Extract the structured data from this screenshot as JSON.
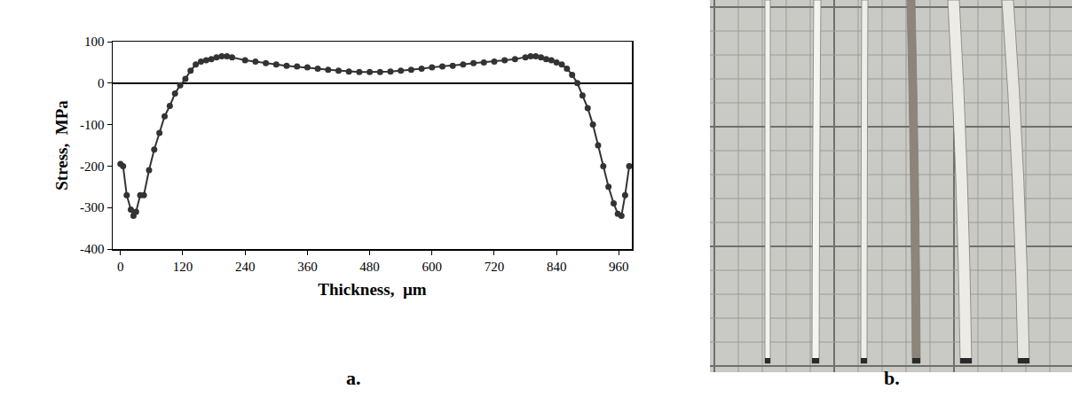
{
  "chart_data": {
    "type": "scatter",
    "x_label": "Thickness,  µm",
    "y_label": "Stress,  MPa",
    "x": [
      0,
      5,
      12,
      20,
      25,
      30,
      38,
      45,
      55,
      65,
      75,
      85,
      95,
      105,
      115,
      125,
      135,
      145,
      155,
      165,
      175,
      185,
      195,
      205,
      215,
      240,
      260,
      280,
      300,
      320,
      340,
      360,
      380,
      400,
      420,
      440,
      460,
      480,
      500,
      520,
      540,
      560,
      580,
      600,
      620,
      640,
      660,
      680,
      700,
      720,
      740,
      760,
      780,
      790,
      800,
      810,
      820,
      830,
      840,
      850,
      860,
      870,
      880,
      890,
      900,
      910,
      920,
      930,
      940,
      950,
      958,
      965,
      972,
      980
    ],
    "values": [
      -195,
      -200,
      -270,
      -305,
      -320,
      -310,
      -270,
      -270,
      -210,
      -160,
      -120,
      -80,
      -55,
      -25,
      -5,
      10,
      30,
      45,
      52,
      55,
      58,
      62,
      65,
      65,
      62,
      55,
      52,
      48,
      45,
      42,
      40,
      38,
      35,
      32,
      30,
      28,
      27,
      27,
      27,
      28,
      30,
      32,
      35,
      38,
      40,
      42,
      45,
      48,
      50,
      52,
      55,
      58,
      62,
      65,
      65,
      62,
      58,
      55,
      50,
      45,
      35,
      20,
      0,
      -30,
      -60,
      -100,
      -150,
      -200,
      -250,
      -290,
      -315,
      -320,
      -270,
      -200
    ],
    "color": "#333333",
    "marker": "circle",
    "line_style": "solid",
    "xlim": [
      -15,
      985
    ],
    "xticks": [
      0,
      120,
      240,
      360,
      480,
      600,
      720,
      840,
      960
    ],
    "ylim": [
      -400,
      100
    ],
    "yticks": [
      -400,
      -300,
      -200,
      -100,
      0,
      100
    ],
    "grid": false
  },
  "panel_labels": [
    "a.",
    "b."
  ]
}
